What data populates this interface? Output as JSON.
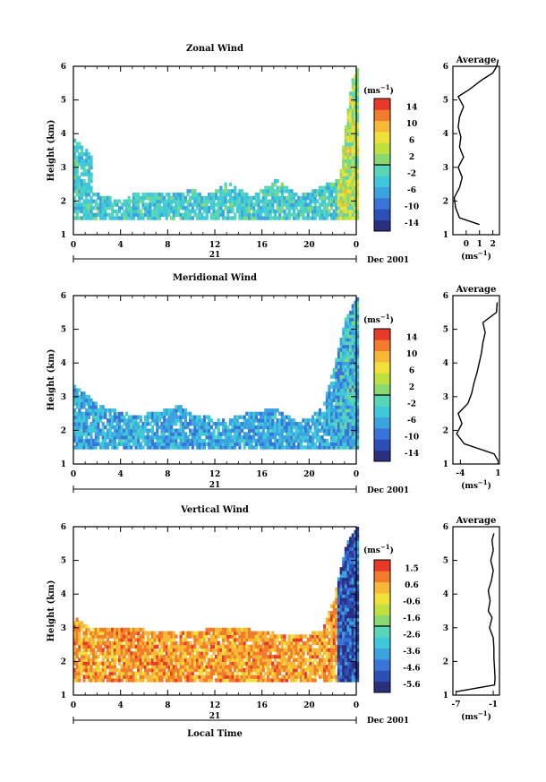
{
  "x_axis_label": "Local Time",
  "date_label": "Dec 2001",
  "day_label": "21",
  "unit_label": "(ms",
  "unit_exp": "−1",
  "height_label": "Height (km)",
  "colors": {
    "palette": [
      "#2b2f80",
      "#2c4fb6",
      "#3a74d8",
      "#3ba3e0",
      "#3fc8da",
      "#58d6b8",
      "#8ad870",
      "#c0e040",
      "#efe13a",
      "#f6b836",
      "#f27c2c",
      "#e83a28"
    ]
  },
  "chart_data": [
    {
      "type": "heatmap",
      "title": "Zonal Wind",
      "x_ticks": [
        "0",
        "4",
        "8",
        "12",
        "16",
        "20",
        "0"
      ],
      "xlim": [
        0,
        24
      ],
      "y_ticks": [
        "1",
        "2",
        "3",
        "4",
        "5",
        "6"
      ],
      "ylim": [
        1,
        6
      ],
      "colorbar": {
        "ticks": [
          "14",
          "10",
          "6",
          "2",
          "-2",
          "-6",
          "-10",
          "-14"
        ],
        "range": [
          -16,
          16
        ]
      },
      "coverage": {
        "base_km": 1.45,
        "tops": [
          [
            0,
            3.8
          ],
          [
            1.5,
            3.3
          ],
          [
            1.6,
            2.2
          ],
          [
            4,
            1.95
          ],
          [
            5,
            2.2
          ],
          [
            7,
            2.2
          ],
          [
            9,
            2.2
          ],
          [
            10,
            2.3
          ],
          [
            11,
            2.1
          ],
          [
            13,
            2.5
          ],
          [
            15,
            2.1
          ],
          [
            17,
            2.6
          ],
          [
            19,
            2.1
          ],
          [
            21,
            2.4
          ],
          [
            22.5,
            2.6
          ],
          [
            23,
            4.2
          ],
          [
            23.5,
            5.5
          ],
          [
            24,
            5.9
          ]
        ],
        "mean_value": -3,
        "convective_start_h": 22.3,
        "convective_value": 3
      },
      "avg_profile": {
        "title": "Average",
        "x_ticks": [
          "0",
          "1",
          "2"
        ],
        "xlim": [
          -1,
          2.5
        ],
        "xlabel": "(ms",
        "height": [
          1.3,
          1.5,
          1.8,
          2.1,
          2.4,
          2.7,
          3.0,
          3.3,
          3.6,
          3.9,
          4.2,
          4.5,
          4.8,
          5.1,
          5.3,
          5.6,
          5.8,
          6.0,
          6.2
        ],
        "value": [
          1.0,
          -0.5,
          -0.8,
          -0.9,
          -0.5,
          -0.3,
          -0.6,
          -0.2,
          -0.5,
          -0.4,
          -0.6,
          -0.5,
          -0.2,
          -0.6,
          0.2,
          1.2,
          2.0,
          2.3,
          2.4
        ]
      }
    },
    {
      "type": "heatmap",
      "title": "Meridional Wind",
      "x_ticks": [
        "0",
        "4",
        "8",
        "12",
        "16",
        "20",
        "0"
      ],
      "xlim": [
        0,
        24
      ],
      "y_ticks": [
        "1",
        "2",
        "3",
        "4",
        "5",
        "6"
      ],
      "ylim": [
        1,
        6
      ],
      "colorbar": {
        "ticks": [
          "14",
          "10",
          "6",
          "2",
          "-2",
          "-6",
          "-10",
          "-14"
        ],
        "range": [
          -16,
          16
        ]
      },
      "coverage": {
        "base_km": 1.45,
        "tops": [
          [
            0,
            3.3
          ],
          [
            1.4,
            2.9
          ],
          [
            2,
            2.7
          ],
          [
            5,
            2.4
          ],
          [
            7,
            2.5
          ],
          [
            9,
            2.7
          ],
          [
            10,
            2.4
          ],
          [
            13,
            2.3
          ],
          [
            15,
            2.5
          ],
          [
            17,
            2.6
          ],
          [
            19,
            2.2
          ],
          [
            21,
            2.6
          ],
          [
            22,
            3.8
          ],
          [
            23,
            5.3
          ],
          [
            24,
            5.9
          ]
        ],
        "mean_value": -6,
        "convective_start_h": 22.0,
        "convective_value": -5
      },
      "avg_profile": {
        "title": "Average",
        "x_ticks": [
          "-4",
          "1"
        ],
        "xlim": [
          -5,
          1.2
        ],
        "xlabel": "(ms",
        "height": [
          1.1,
          1.3,
          1.6,
          1.9,
          2.2,
          2.5,
          2.8,
          3.1,
          3.4,
          3.7,
          4.0,
          4.3,
          4.6,
          4.9,
          5.2,
          5.5,
          5.8
        ],
        "value": [
          1.0,
          0.5,
          -3.5,
          -4.5,
          -3.8,
          -4.3,
          -3.0,
          -2.5,
          -2.2,
          -1.8,
          -1.5,
          -1.2,
          -1.0,
          -0.7,
          -1.0,
          0.8,
          0.9
        ]
      }
    },
    {
      "type": "heatmap",
      "title": "Vertical Wind",
      "x_ticks": [
        "0",
        "4",
        "8",
        "12",
        "16",
        "20",
        "0"
      ],
      "xlim": [
        0,
        24
      ],
      "y_ticks": [
        "1",
        "2",
        "3",
        "4",
        "5",
        "6"
      ],
      "ylim": [
        1,
        6
      ],
      "colorbar": {
        "ticks": [
          "1.5",
          "0.6",
          "-0.6",
          "-1.6",
          "-2.6",
          "-3.6",
          "-4.6",
          "-5.6"
        ],
        "range": [
          -6.1,
          2.0
        ]
      },
      "coverage": {
        "base_km": 1.4,
        "tops": [
          [
            0,
            3.3
          ],
          [
            1.4,
            2.9
          ],
          [
            2,
            3.0
          ],
          [
            5,
            3.0
          ],
          [
            7,
            2.8
          ],
          [
            9,
            2.9
          ],
          [
            11,
            2.9
          ],
          [
            13,
            3.0
          ],
          [
            15,
            2.9
          ],
          [
            17,
            2.8
          ],
          [
            19,
            2.7
          ],
          [
            21,
            2.9
          ],
          [
            22,
            3.8
          ],
          [
            23,
            5.4
          ],
          [
            24,
            6.0
          ]
        ],
        "mean_value": 0.6,
        "convective_start_h": 22.3,
        "convective_value": -5.0
      },
      "avg_profile": {
        "title": "Average",
        "x_ticks": [
          "-7",
          "-1"
        ],
        "xlim": [
          -7.5,
          0
        ],
        "xlabel": "(ms",
        "height": [
          1.1,
          1.3,
          1.5,
          1.8,
          2.1,
          2.4,
          2.7,
          3.0,
          3.3,
          3.5,
          3.8,
          4.1,
          4.4,
          4.7,
          5.0,
          5.3,
          5.6,
          5.8
        ],
        "value": [
          -7.0,
          -0.8,
          -0.7,
          -0.8,
          -0.9,
          -0.9,
          -1.0,
          -1.6,
          -1.2,
          -1.8,
          -1.5,
          -1.8,
          -1.3,
          -1.0,
          -1.4,
          -1.0,
          -1.2,
          -0.9
        ]
      }
    }
  ]
}
